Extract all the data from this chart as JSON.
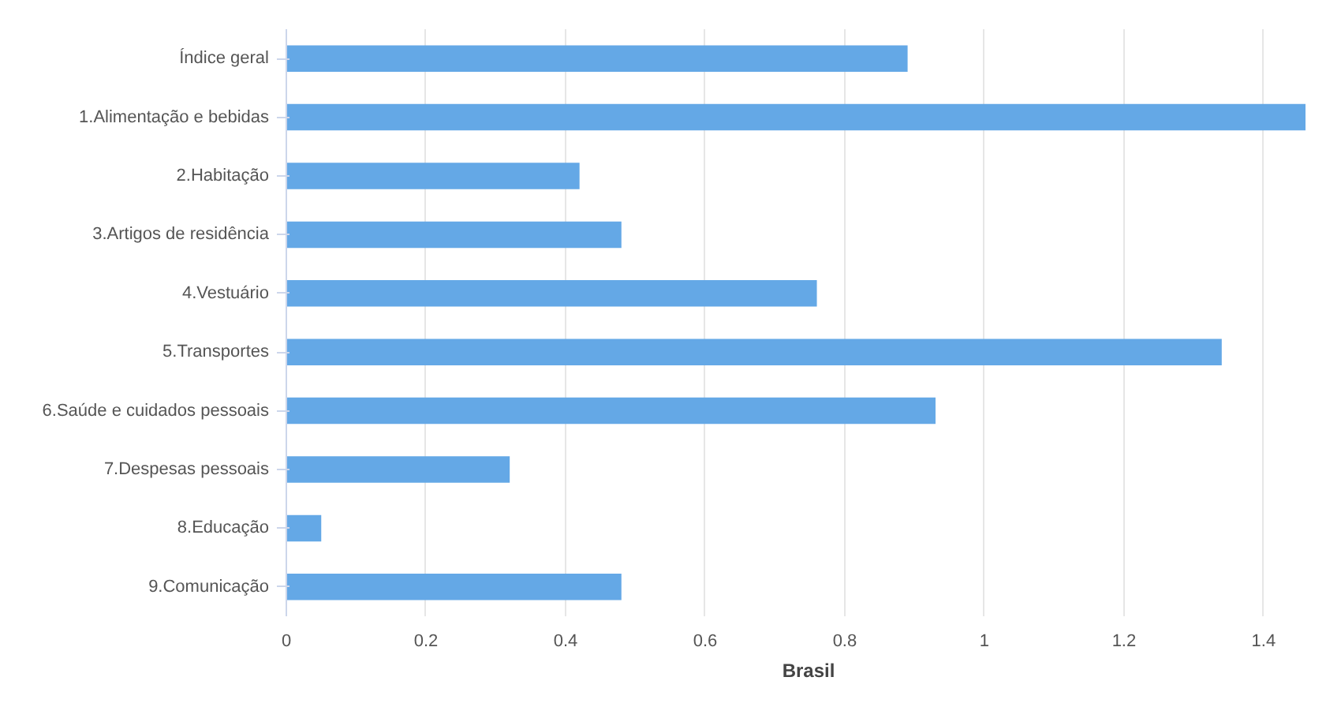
{
  "chart_data": {
    "type": "bar",
    "orientation": "horizontal",
    "categories": [
      "Índice geral",
      "1.Alimentação e bebidas",
      "2.Habitação",
      "3.Artigos de residência",
      "4.Vestuário",
      "5.Transportes",
      "6.Saúde e cuidados pessoais",
      "7.Despesas pessoais",
      "8.Educação",
      "9.Comunicação"
    ],
    "series": [
      {
        "name": "Brasil",
        "color": "#64a8e6",
        "values": [
          0.89,
          1.46,
          0.42,
          0.48,
          0.76,
          1.34,
          0.93,
          0.32,
          0.05,
          0.48
        ]
      }
    ],
    "xlim": [
      0,
      1.46
    ],
    "xticks": [
      0,
      0.2,
      0.4,
      0.6,
      0.8,
      1,
      1.2,
      1.4
    ],
    "grid": "x",
    "legend": "bottom"
  }
}
